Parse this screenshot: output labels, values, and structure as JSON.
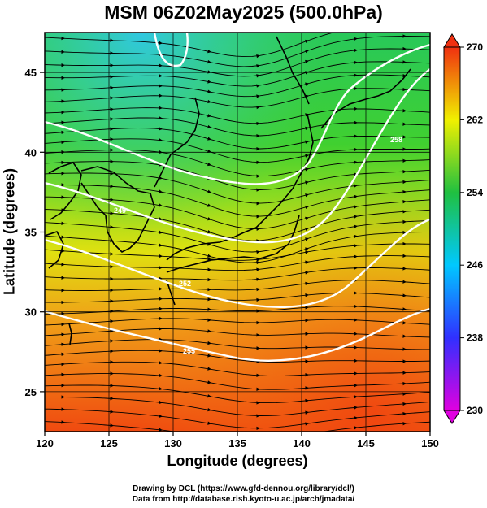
{
  "title": "MSM 06Z02May2025 (500.0hPa)",
  "x_axis": {
    "label": "Longitude (degrees)",
    "range": [
      120,
      150
    ],
    "ticks": [
      "120",
      "125",
      "130",
      "135",
      "140",
      "145",
      "150"
    ]
  },
  "y_axis": {
    "label": "Latitude  (degrees)",
    "range": [
      22.5,
      47.5
    ],
    "ticks": [
      "25",
      "30",
      "35",
      "40",
      "45"
    ]
  },
  "colorbar": {
    "range": [
      230,
      270
    ],
    "ticks": [
      "230",
      "238",
      "246",
      "254",
      "262",
      "270"
    ],
    "colors": [
      "#e000e0",
      "#3030ff",
      "#00c8ff",
      "#20c040",
      "#f0f000",
      "#f03010"
    ]
  },
  "contours": {
    "values": [
      "249",
      "252",
      "255",
      "258"
    ],
    "color": "#ffffff"
  },
  "colors": {
    "streamline": "#000000",
    "coastline": "#000000",
    "grid": "#000000"
  },
  "credits": {
    "line1": "Drawing by DCL (https://www.gfd-dennou.org/library/dcl/)",
    "line2": "Data from http://database.rish.kyoto-u.ac.jp/arch/jmadata/"
  }
}
